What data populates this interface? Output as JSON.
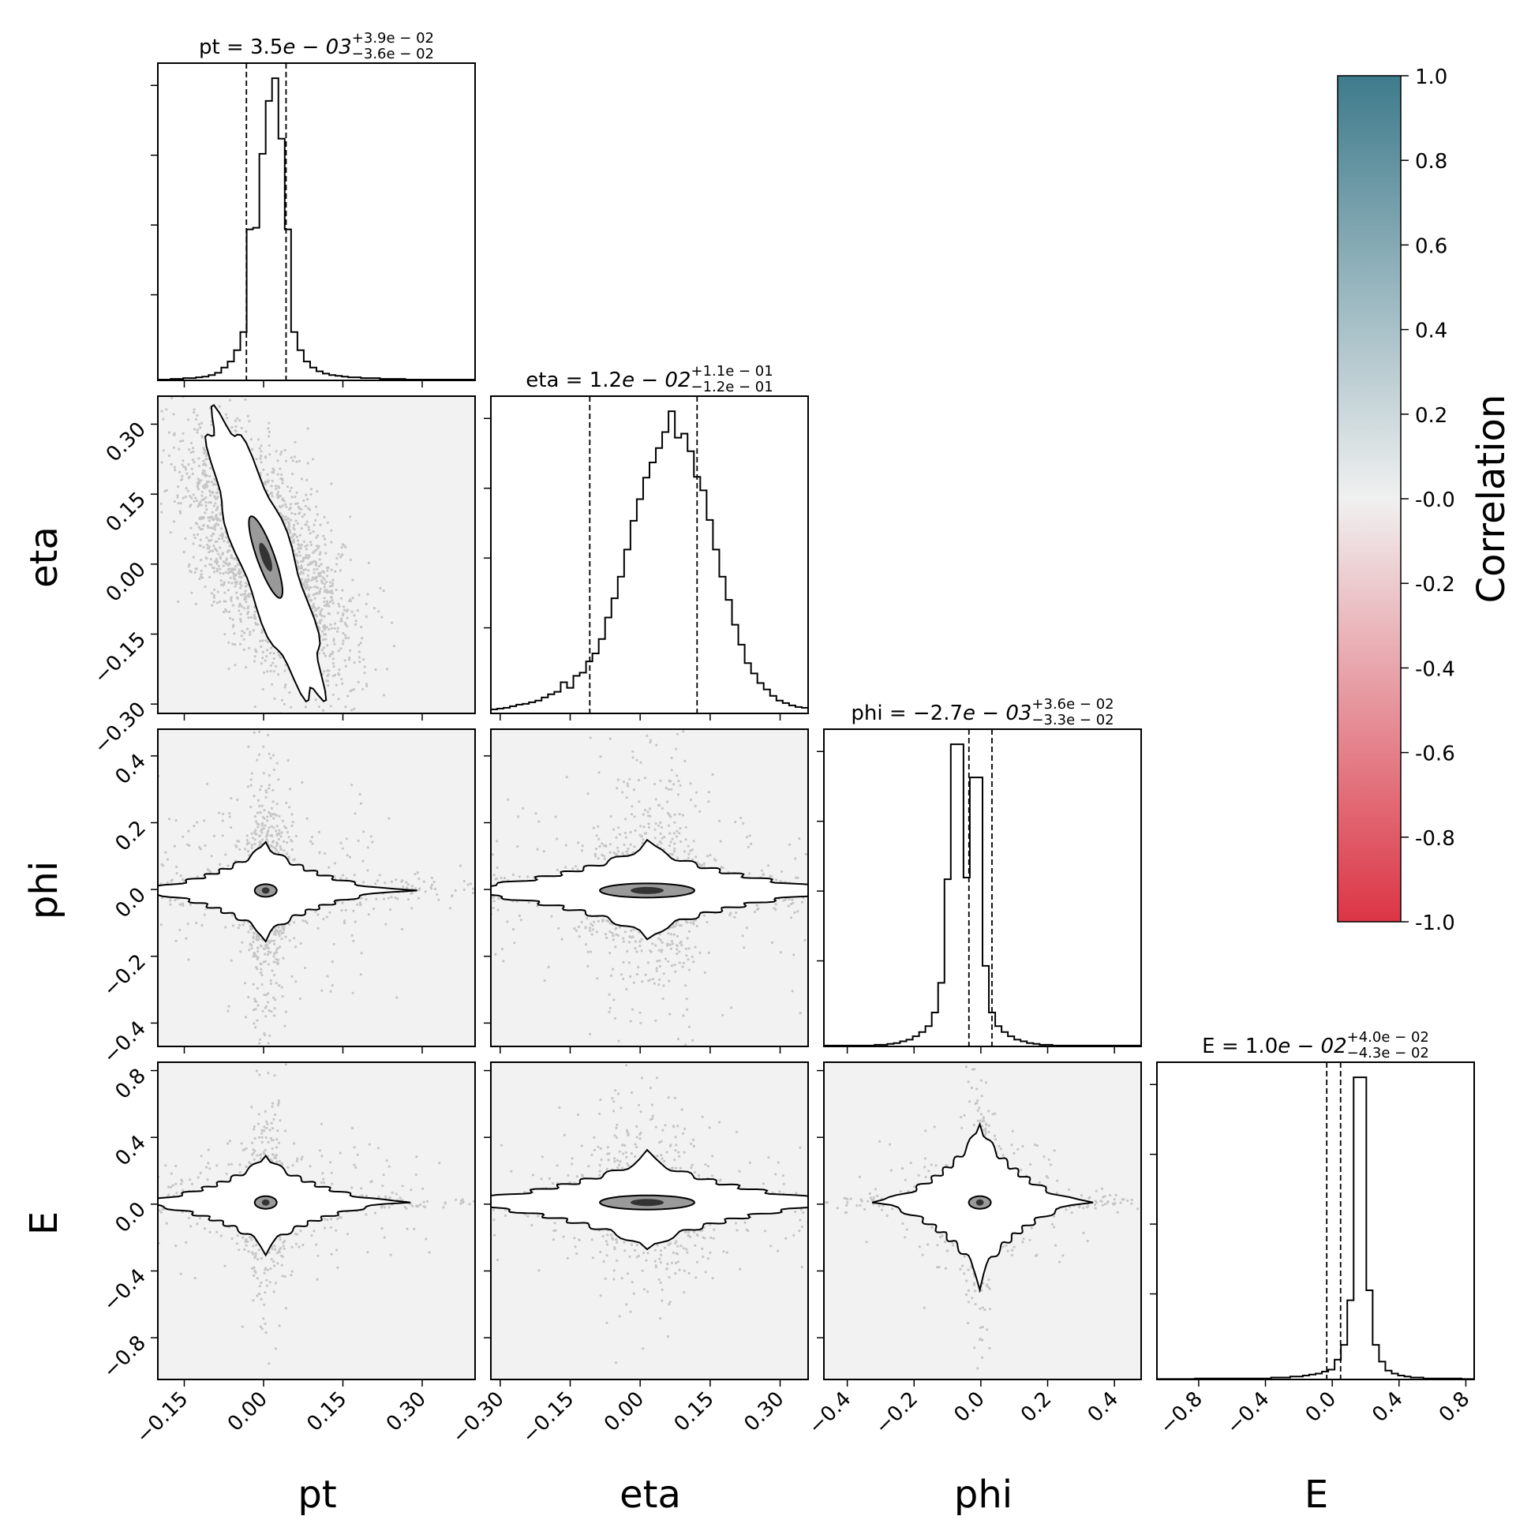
{
  "chart_data": {
    "type": "corner",
    "parameters": [
      "pt",
      "eta",
      "phi",
      "E"
    ],
    "axis_labels": {
      "x": [
        "pt",
        "eta",
        "phi",
        "E"
      ],
      "y": [
        "eta",
        "phi",
        "E"
      ]
    },
    "titles": [
      {
        "param": "pt",
        "main": "pt = 3.5",
        "exp": "e − 03",
        "plus": "+3.9e − 02",
        "minus": "−3.6e − 02"
      },
      {
        "param": "eta",
        "main": "eta = 1.2",
        "exp": "e − 02",
        "plus": "+1.1e − 01",
        "minus": "−1.2e − 01"
      },
      {
        "param": "phi",
        "main": "phi = −2.7",
        "exp": "e − 03",
        "plus": "+3.6e − 02",
        "minus": "−3.3e − 02"
      },
      {
        "param": "E",
        "main": "E = 1.0",
        "exp": "e − 02",
        "plus": "+4.0e − 02",
        "minus": "−4.3e − 02"
      }
    ],
    "ranges": {
      "pt": [
        -0.2,
        0.4
      ],
      "eta": [
        -0.32,
        0.36
      ],
      "phi": [
        -0.47,
        0.48
      ],
      "E": [
        -1.05,
        0.85
      ]
    },
    "ticks": {
      "pt": {
        "values": [
          -0.15,
          0.0,
          0.15,
          0.3
        ],
        "labels": [
          "−0.15",
          "0.00",
          "0.15",
          "0.30"
        ]
      },
      "eta": {
        "values": [
          -0.3,
          -0.15,
          0.0,
          0.15,
          0.3
        ],
        "labels": [
          "−0.30",
          "−0.15",
          "0.00",
          "0.15",
          "0.30"
        ]
      },
      "phi": {
        "values": [
          -0.4,
          -0.2,
          0.0,
          0.2,
          0.4
        ],
        "labels": [
          "−0.4",
          "−0.2",
          "0.0",
          "0.2",
          "0.4"
        ]
      },
      "E": {
        "values": [
          -0.8,
          -0.4,
          0.0,
          0.4,
          0.8
        ],
        "labels": [
          "−0.8",
          "−0.4",
          "0.0",
          "0.4",
          "0.8"
        ]
      }
    },
    "quantiles": {
      "pt": [
        -0.0325,
        0.0425
      ],
      "eta": [
        -0.108,
        0.122
      ],
      "phi": [
        -0.0357,
        0.0333
      ],
      "E": [
        -0.033,
        0.05
      ]
    },
    "histograms": {
      "pt": {
        "edges_range": [
          -0.2,
          0.4
        ],
        "counts": [
          1,
          1,
          2,
          2,
          3,
          3,
          4,
          5,
          7,
          10,
          17,
          25,
          40,
          64,
          200,
          202,
          300,
          370,
          400,
          320,
          200,
          64,
          40,
          25,
          17,
          12,
          9,
          7,
          6,
          5,
          4,
          4,
          3,
          3,
          3,
          2,
          2,
          2,
          2,
          1,
          1,
          1,
          1,
          1,
          1,
          1,
          1,
          1,
          1,
          1
        ]
      },
      "eta": {
        "edges_range": [
          -0.32,
          0.36
        ],
        "counts": [
          5,
          6,
          7,
          9,
          11,
          12,
          14,
          16,
          20,
          24,
          27,
          39,
          32,
          47,
          51,
          65,
          75,
          93,
          120,
          144,
          171,
          205,
          241,
          268,
          295,
          314,
          332,
          352,
          378,
          345,
          350,
          328,
          296,
          279,
          242,
          205,
          171,
          142,
          111,
          86,
          63,
          50,
          38,
          30,
          22,
          16,
          13,
          10,
          8,
          7
        ]
      },
      "phi": {
        "edges_range": [
          -0.47,
          0.48
        ],
        "counts": [
          1,
          1,
          1,
          1,
          1,
          1,
          1,
          1,
          2,
          2,
          3,
          4,
          6,
          8,
          12,
          17,
          24,
          40,
          75,
          197,
          356,
          356,
          199,
          317,
          317,
          95,
          40,
          24,
          17,
          12,
          8,
          6,
          4,
          3,
          2,
          2,
          1,
          1,
          1,
          1,
          1,
          1,
          1,
          1,
          1,
          1,
          1,
          1,
          1,
          1
        ]
      },
      "E": {
        "edges_range": [
          -1.05,
          0.85
        ],
        "counts": [
          0.5,
          0.5,
          0.5,
          0.5,
          0.5,
          0.5,
          1,
          1,
          1,
          1,
          1,
          1,
          1,
          1,
          1,
          1,
          1,
          1,
          2,
          2,
          2,
          3,
          3,
          4,
          5,
          6,
          8,
          10,
          20,
          35,
          80,
          305,
          305,
          90,
          35,
          18,
          9,
          6,
          4,
          3,
          2,
          2,
          1,
          1,
          1,
          1,
          1,
          1,
          0.5,
          0.5
        ]
      }
    },
    "correlations": {
      "eta|pt": -0.6,
      "phi|pt": 0.0,
      "phi|eta": 0.0,
      "E|pt": 0.0,
      "E|eta": 0.0,
      "E|phi": 0.0
    },
    "colorbar": {
      "label": "Correlation",
      "range": [
        -1.0,
        1.0
      ],
      "ticks": [
        1.0,
        0.8,
        0.6,
        0.4,
        0.2,
        -0.0,
        -0.2,
        -0.4,
        -0.6,
        -0.8,
        -1.0
      ],
      "tick_labels": [
        "1.0",
        "0.8",
        "0.6",
        "0.4",
        "0.2",
        "-0.0",
        "-0.2",
        "-0.4",
        "-0.6",
        "-0.8",
        "-1.0"
      ],
      "colors": {
        "max": "#3e7b8c",
        "mid": "#f0f0f0",
        "min": "#dc3545"
      }
    },
    "panel_background": "#f2f2f2"
  }
}
